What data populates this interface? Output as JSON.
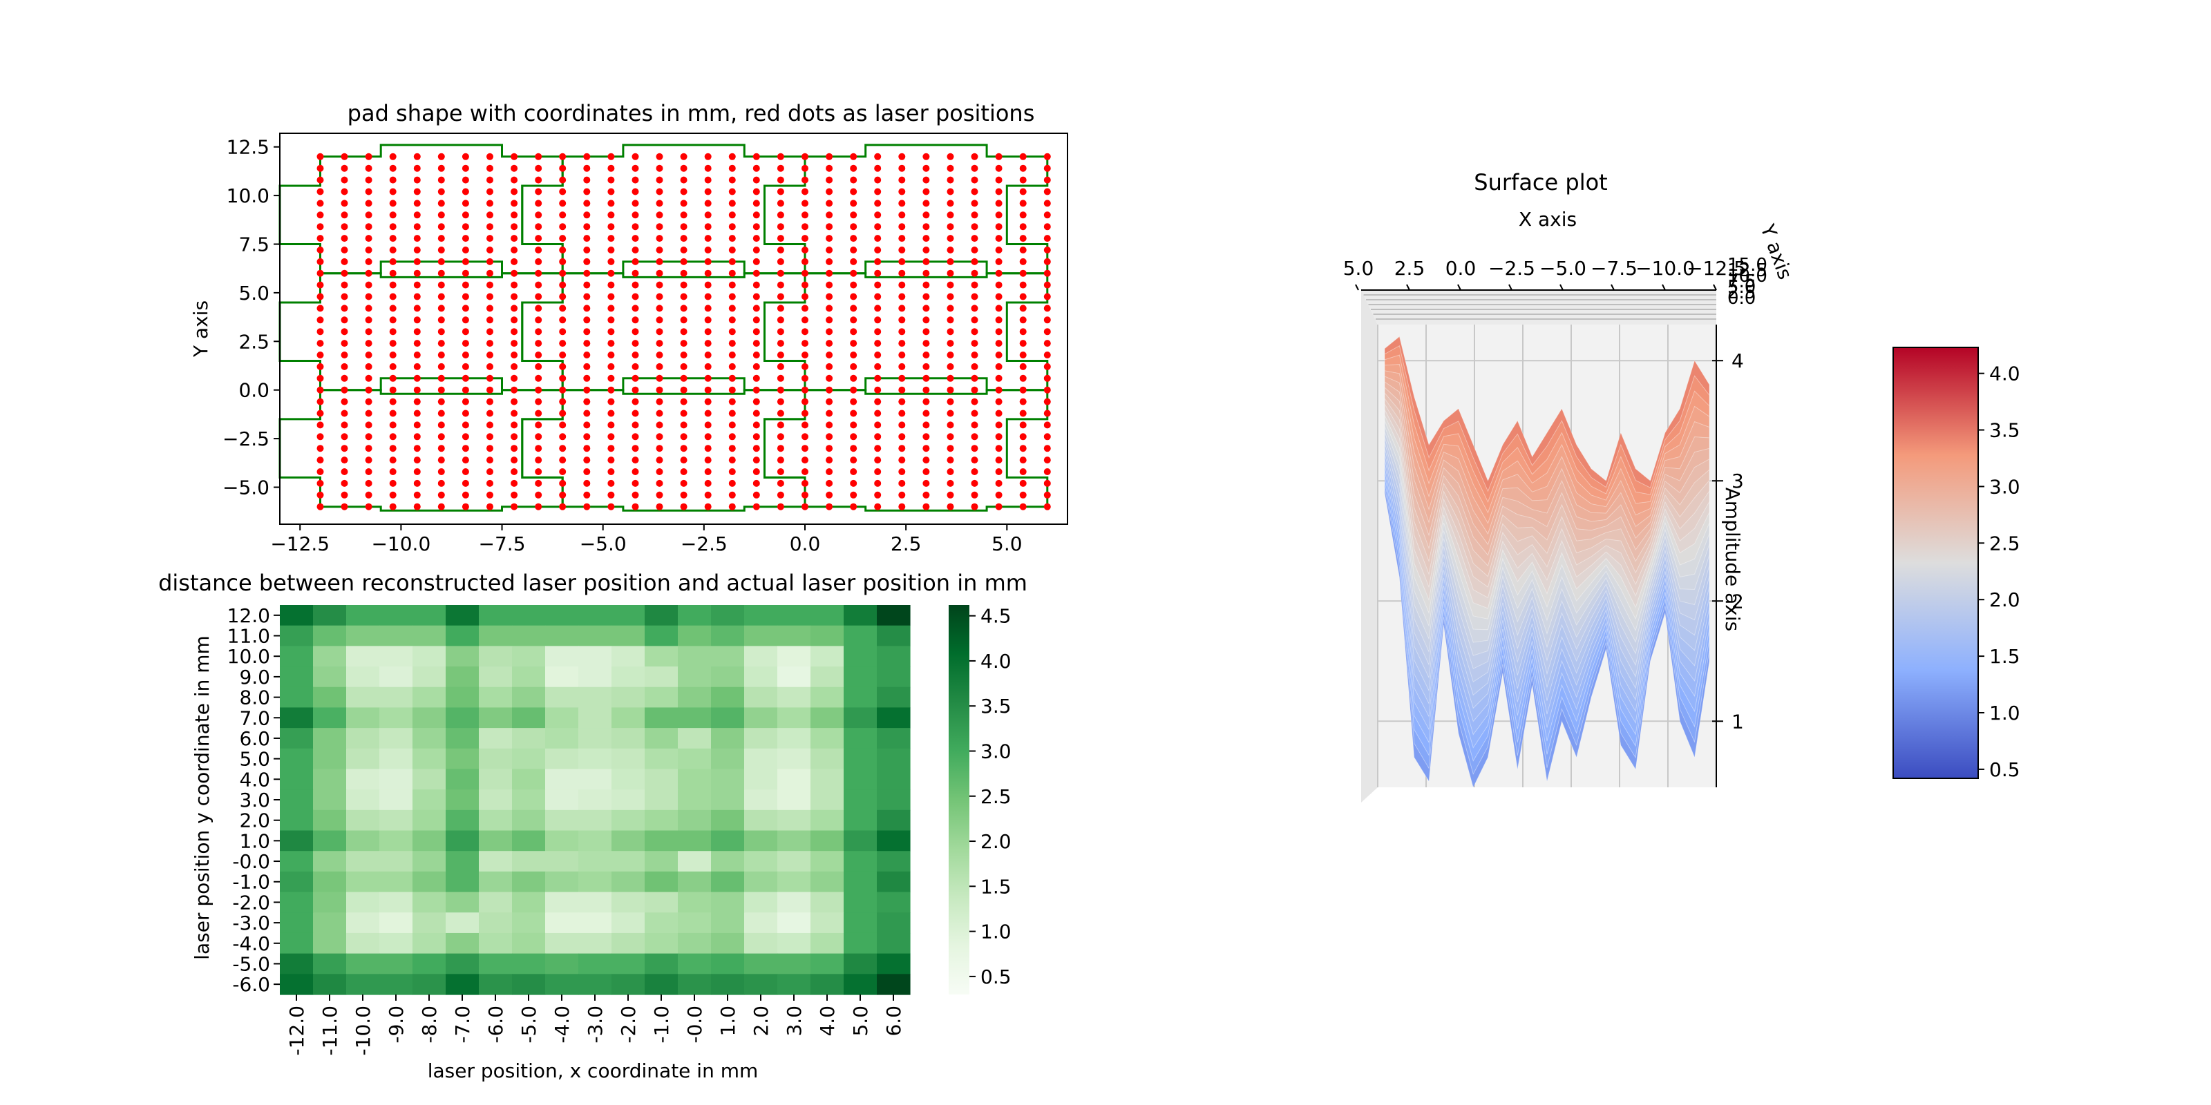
{
  "figure": {
    "background": "#ffffff"
  },
  "chart_data": [
    {
      "type": "scatter",
      "title": "pad shape with coordinates in mm, red dots as laser positions",
      "xlabel": "",
      "ylabel": "Y axis",
      "xlim": [
        -13.0,
        6.5
      ],
      "ylim": [
        -6.9,
        13.2
      ],
      "xticks": [
        -12.5,
        -10.0,
        -7.5,
        -5.0,
        -2.5,
        0.0,
        2.5,
        5.0
      ],
      "xtick_labels": [
        "−12.5",
        "−10.0",
        "−7.5",
        "−5.0",
        "−2.5",
        "0.0",
        "2.5",
        "5.0"
      ],
      "yticks": [
        -5.0,
        -2.5,
        0.0,
        2.5,
        5.0,
        7.5,
        10.0,
        12.5
      ],
      "ytick_labels": [
        "−5.0",
        "−2.5",
        "0.0",
        "2.5",
        "5.0",
        "7.5",
        "10.0",
        "12.5"
      ],
      "points": {
        "x_start": -12.0,
        "x_end": 6.0,
        "x_step": 0.6,
        "y_start": -6.0,
        "y_end": 12.0,
        "y_step": 0.6,
        "color": "#ff0000"
      },
      "outline_color": "#008000",
      "pad_rows": [
        {
          "y0": -6.0,
          "y1": 0.0,
          "nub_y": [
            -1.5,
            -4.5
          ],
          "tab_y": [
            -6.2,
            0.6
          ]
        },
        {
          "y0": 0.0,
          "y1": 6.0,
          "nub_y": [
            4.5,
            1.5
          ],
          "tab_y": [
            -0.2,
            6.6
          ]
        },
        {
          "y0": 6.0,
          "y1": 12.0,
          "nub_y": [
            10.5,
            7.5
          ],
          "tab_y": [
            5.8,
            12.6
          ]
        }
      ],
      "pad_cols": [
        {
          "x0": -12.0,
          "x1": -6.0,
          "tab_x": [
            -10.5,
            -7.5
          ]
        },
        {
          "x0": -6.0,
          "x1": 0.0,
          "tab_x": [
            -4.5,
            -1.5
          ]
        },
        {
          "x0": 0.0,
          "x1": 6.0,
          "tab_x": [
            1.5,
            4.5
          ]
        }
      ],
      "nub_depth": 1.0
    },
    {
      "type": "heatmap",
      "title": "distance between reconstructed laser position and actual laser position in mm",
      "xlabel": "laser position, x coordinate in mm",
      "ylabel": "laser position y coordinate in mm",
      "x_labels": [
        "-12.0",
        "-11.0",
        "-10.0",
        "-9.0",
        "-8.0",
        "-7.0",
        "-6.0",
        "-5.0",
        "-4.0",
        "-3.0",
        "-2.0",
        "-1.0",
        "-0.0",
        "1.0",
        "2.0",
        "3.0",
        "4.0",
        "5.0",
        "6.0"
      ],
      "y_labels": [
        "12.0",
        "11.0",
        "10.0",
        "9.0",
        "8.0",
        "7.0",
        "6.0",
        "5.0",
        "4.0",
        "3.0",
        "2.0",
        "1.0",
        "-0.0",
        "-1.0",
        "-2.0",
        "-3.0",
        "-4.0",
        "-5.0",
        "-6.0"
      ],
      "values": [
        [
          4.0,
          3.5,
          3.0,
          3.0,
          3.0,
          3.9,
          3.0,
          3.0,
          3.0,
          3.0,
          3.0,
          3.6,
          3.0,
          3.2,
          3.0,
          3.0,
          3.0,
          3.8,
          4.6
        ],
        [
          3.2,
          2.6,
          2.3,
          2.3,
          2.3,
          3.0,
          2.4,
          2.4,
          2.4,
          2.4,
          2.4,
          3.0,
          2.5,
          2.7,
          2.4,
          2.4,
          2.5,
          3.0,
          3.5
        ],
        [
          3.0,
          2.0,
          1.1,
          1.1,
          1.3,
          2.2,
          1.6,
          1.7,
          1.0,
          1.0,
          1.2,
          1.8,
          2.0,
          2.0,
          1.2,
          0.9,
          1.3,
          3.0,
          3.2
        ],
        [
          3.0,
          2.1,
          1.2,
          1.0,
          1.4,
          2.4,
          1.5,
          1.8,
          0.9,
          1.0,
          1.3,
          1.4,
          2.0,
          2.1,
          1.3,
          0.8,
          1.5,
          3.0,
          3.2
        ],
        [
          3.0,
          2.5,
          1.5,
          1.5,
          1.8,
          2.5,
          1.8,
          2.1,
          1.5,
          1.5,
          1.6,
          1.8,
          2.2,
          2.5,
          1.6,
          1.4,
          1.8,
          3.0,
          3.4
        ],
        [
          3.8,
          2.9,
          2.0,
          1.8,
          2.2,
          2.8,
          2.3,
          2.6,
          1.8,
          1.5,
          1.9,
          2.6,
          2.6,
          2.8,
          2.1,
          1.8,
          2.3,
          3.3,
          4.0
        ],
        [
          3.2,
          2.3,
          1.6,
          1.4,
          2.0,
          2.6,
          1.4,
          1.6,
          1.7,
          1.5,
          1.6,
          2.0,
          1.5,
          2.2,
          1.5,
          1.3,
          1.8,
          3.0,
          3.3
        ],
        [
          3.0,
          2.3,
          1.5,
          1.2,
          1.8,
          2.4,
          1.6,
          1.7,
          1.4,
          1.3,
          1.4,
          1.7,
          1.8,
          2.1,
          1.2,
          1.1,
          1.6,
          3.0,
          3.2
        ],
        [
          3.0,
          2.2,
          1.1,
          1.0,
          1.6,
          2.6,
          1.5,
          1.9,
          1.0,
          1.0,
          1.3,
          1.5,
          1.9,
          2.0,
          1.2,
          0.9,
          1.5,
          3.0,
          3.2
        ],
        [
          3.0,
          2.2,
          1.2,
          1.0,
          1.8,
          2.5,
          1.4,
          1.8,
          1.0,
          1.1,
          1.2,
          1.5,
          1.9,
          2.0,
          1.1,
          0.9,
          1.5,
          3.0,
          3.2
        ],
        [
          3.0,
          2.4,
          1.6,
          1.5,
          1.9,
          2.8,
          1.7,
          2.0,
          1.5,
          1.5,
          1.7,
          1.9,
          2.1,
          2.4,
          1.6,
          1.5,
          1.8,
          3.0,
          3.5
        ],
        [
          3.6,
          2.8,
          2.1,
          1.9,
          2.3,
          3.2,
          2.3,
          2.6,
          1.9,
          1.8,
          2.2,
          2.5,
          2.5,
          2.8,
          2.3,
          2.1,
          2.4,
          3.3,
          4.0
        ],
        [
          3.0,
          2.1,
          1.6,
          1.6,
          2.0,
          2.8,
          1.4,
          1.6,
          1.6,
          1.7,
          1.7,
          2.0,
          1.2,
          2.0,
          1.7,
          1.5,
          1.9,
          3.0,
          3.3
        ],
        [
          3.2,
          2.4,
          1.9,
          1.9,
          2.3,
          2.8,
          2.0,
          2.3,
          2.0,
          1.9,
          2.1,
          2.5,
          2.2,
          2.6,
          2.0,
          1.8,
          2.1,
          3.0,
          3.6
        ],
        [
          3.0,
          2.3,
          1.3,
          1.2,
          1.8,
          2.1,
          1.5,
          1.9,
          1.1,
          1.1,
          1.4,
          1.5,
          1.9,
          2.0,
          1.3,
          1.0,
          1.5,
          3.0,
          3.2
        ],
        [
          3.0,
          2.2,
          1.1,
          0.9,
          1.6,
          1.2,
          1.6,
          1.8,
          0.9,
          0.9,
          1.2,
          1.7,
          1.8,
          2.0,
          1.1,
          0.8,
          1.4,
          3.0,
          3.3
        ],
        [
          3.0,
          2.2,
          1.4,
          1.3,
          1.7,
          2.2,
          1.7,
          1.9,
          1.4,
          1.4,
          1.6,
          1.8,
          2.0,
          2.2,
          1.4,
          1.3,
          1.7,
          3.0,
          3.3
        ],
        [
          3.8,
          3.2,
          2.8,
          2.8,
          3.0,
          3.3,
          2.9,
          2.9,
          2.8,
          2.9,
          2.9,
          3.2,
          2.9,
          3.0,
          2.8,
          2.8,
          2.9,
          3.6,
          4.0
        ],
        [
          4.0,
          3.6,
          3.3,
          3.3,
          3.4,
          4.0,
          3.4,
          3.5,
          3.3,
          3.3,
          3.4,
          3.7,
          3.4,
          3.5,
          3.4,
          3.3,
          3.5,
          4.0,
          4.6
        ]
      ],
      "colorbar": {
        "min": 0.3,
        "max": 4.62,
        "ticks": [
          0.5,
          1.0,
          1.5,
          2.0,
          2.5,
          3.0,
          3.5,
          4.0,
          4.5
        ],
        "tick_labels": [
          "0.5",
          "1.0",
          "1.5",
          "2.0",
          "2.5",
          "3.0",
          "3.5",
          "4.0",
          "4.5"
        ]
      }
    },
    {
      "type": "surface",
      "title": "Surface plot",
      "xlabel": "X axis",
      "ylabel": "Y axis",
      "zlabel": "Amplitude axis",
      "x_tick_labels": [
        "5.0",
        "2.5",
        "0.0",
        "−2.5",
        "−5.0",
        "−7.5",
        "−10.0",
        "−12.5"
      ],
      "y_tick_labels": [
        "15.0",
        "12.5",
        "10.0",
        "7.5",
        "5.0",
        "2.5",
        "0.0"
      ],
      "z_ticks": [
        1,
        2,
        3,
        4
      ],
      "z_tick_labels": [
        "1",
        "2",
        "3",
        "4"
      ],
      "zlim": [
        0.45,
        4.3
      ],
      "profile": [
        {
          "x": -12.0,
          "top": 4.1,
          "low": 2.9
        },
        {
          "x": -11.2,
          "top": 4.2,
          "low": 2.2
        },
        {
          "x": -10.4,
          "top": 3.7,
          "low": 0.7
        },
        {
          "x": -9.6,
          "top": 3.3,
          "low": 0.5
        },
        {
          "x": -8.8,
          "top": 3.5,
          "low": 1.8
        },
        {
          "x": -8.0,
          "top": 3.6,
          "low": 0.9
        },
        {
          "x": -7.2,
          "top": 3.3,
          "low": 0.45
        },
        {
          "x": -6.4,
          "top": 3.0,
          "low": 0.7
        },
        {
          "x": -5.6,
          "top": 3.3,
          "low": 1.4
        },
        {
          "x": -4.8,
          "top": 3.5,
          "low": 0.6
        },
        {
          "x": -4.0,
          "top": 3.2,
          "low": 1.3
        },
        {
          "x": -3.2,
          "top": 3.4,
          "low": 0.5
        },
        {
          "x": -2.4,
          "top": 3.6,
          "low": 1.0
        },
        {
          "x": -1.6,
          "top": 3.3,
          "low": 0.7
        },
        {
          "x": -0.8,
          "top": 3.1,
          "low": 1.2
        },
        {
          "x": 0.0,
          "top": 3.0,
          "low": 1.6
        },
        {
          "x": 0.8,
          "top": 3.4,
          "low": 0.8
        },
        {
          "x": 1.6,
          "top": 3.1,
          "low": 0.6
        },
        {
          "x": 2.4,
          "top": 3.0,
          "low": 1.5
        },
        {
          "x": 3.2,
          "top": 3.4,
          "low": 1.9
        },
        {
          "x": 4.0,
          "top": 3.6,
          "low": 1.0
        },
        {
          "x": 4.8,
          "top": 4.0,
          "low": 0.7
        },
        {
          "x": 5.6,
          "top": 3.8,
          "low": 1.5
        }
      ],
      "colorbar": {
        "min": 0.42,
        "max": 4.23,
        "ticks": [
          0.5,
          1.0,
          1.5,
          2.0,
          2.5,
          3.0,
          3.5,
          4.0
        ],
        "tick_labels": [
          "0.5",
          "1.0",
          "1.5",
          "2.0",
          "2.5",
          "3.0",
          "3.5",
          "4.0"
        ]
      }
    }
  ]
}
